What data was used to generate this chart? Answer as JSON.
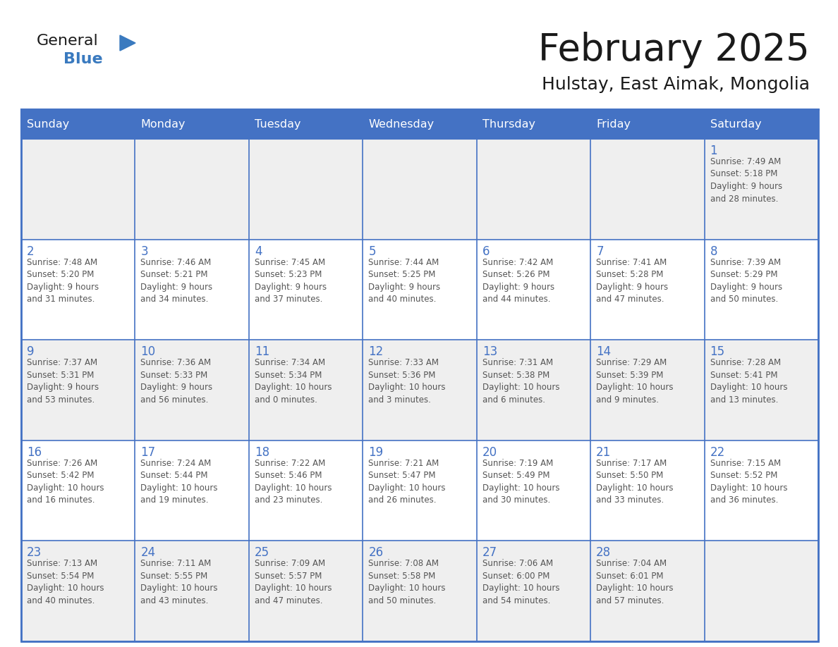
{
  "title": "February 2025",
  "subtitle": "Hulstay, East Aimak, Mongolia",
  "days_of_week": [
    "Sunday",
    "Monday",
    "Tuesday",
    "Wednesday",
    "Thursday",
    "Friday",
    "Saturday"
  ],
  "header_bg": "#4472C4",
  "header_text": "#FFFFFF",
  "cell_bg_light": "#EFEFEF",
  "cell_bg_white": "#FFFFFF",
  "cell_border": "#4472C4",
  "day_number_color": "#4472C4",
  "text_color": "#555555",
  "title_color": "#1a1a1a",
  "logo_general_color": "#1a1a1a",
  "logo_blue_color": "#3a7abf",
  "weeks": [
    [
      {
        "day": null,
        "info": null
      },
      {
        "day": null,
        "info": null
      },
      {
        "day": null,
        "info": null
      },
      {
        "day": null,
        "info": null
      },
      {
        "day": null,
        "info": null
      },
      {
        "day": null,
        "info": null
      },
      {
        "day": 1,
        "info": "Sunrise: 7:49 AM\nSunset: 5:18 PM\nDaylight: 9 hours\nand 28 minutes."
      }
    ],
    [
      {
        "day": 2,
        "info": "Sunrise: 7:48 AM\nSunset: 5:20 PM\nDaylight: 9 hours\nand 31 minutes."
      },
      {
        "day": 3,
        "info": "Sunrise: 7:46 AM\nSunset: 5:21 PM\nDaylight: 9 hours\nand 34 minutes."
      },
      {
        "day": 4,
        "info": "Sunrise: 7:45 AM\nSunset: 5:23 PM\nDaylight: 9 hours\nand 37 minutes."
      },
      {
        "day": 5,
        "info": "Sunrise: 7:44 AM\nSunset: 5:25 PM\nDaylight: 9 hours\nand 40 minutes."
      },
      {
        "day": 6,
        "info": "Sunrise: 7:42 AM\nSunset: 5:26 PM\nDaylight: 9 hours\nand 44 minutes."
      },
      {
        "day": 7,
        "info": "Sunrise: 7:41 AM\nSunset: 5:28 PM\nDaylight: 9 hours\nand 47 minutes."
      },
      {
        "day": 8,
        "info": "Sunrise: 7:39 AM\nSunset: 5:29 PM\nDaylight: 9 hours\nand 50 minutes."
      }
    ],
    [
      {
        "day": 9,
        "info": "Sunrise: 7:37 AM\nSunset: 5:31 PM\nDaylight: 9 hours\nand 53 minutes."
      },
      {
        "day": 10,
        "info": "Sunrise: 7:36 AM\nSunset: 5:33 PM\nDaylight: 9 hours\nand 56 minutes."
      },
      {
        "day": 11,
        "info": "Sunrise: 7:34 AM\nSunset: 5:34 PM\nDaylight: 10 hours\nand 0 minutes."
      },
      {
        "day": 12,
        "info": "Sunrise: 7:33 AM\nSunset: 5:36 PM\nDaylight: 10 hours\nand 3 minutes."
      },
      {
        "day": 13,
        "info": "Sunrise: 7:31 AM\nSunset: 5:38 PM\nDaylight: 10 hours\nand 6 minutes."
      },
      {
        "day": 14,
        "info": "Sunrise: 7:29 AM\nSunset: 5:39 PM\nDaylight: 10 hours\nand 9 minutes."
      },
      {
        "day": 15,
        "info": "Sunrise: 7:28 AM\nSunset: 5:41 PM\nDaylight: 10 hours\nand 13 minutes."
      }
    ],
    [
      {
        "day": 16,
        "info": "Sunrise: 7:26 AM\nSunset: 5:42 PM\nDaylight: 10 hours\nand 16 minutes."
      },
      {
        "day": 17,
        "info": "Sunrise: 7:24 AM\nSunset: 5:44 PM\nDaylight: 10 hours\nand 19 minutes."
      },
      {
        "day": 18,
        "info": "Sunrise: 7:22 AM\nSunset: 5:46 PM\nDaylight: 10 hours\nand 23 minutes."
      },
      {
        "day": 19,
        "info": "Sunrise: 7:21 AM\nSunset: 5:47 PM\nDaylight: 10 hours\nand 26 minutes."
      },
      {
        "day": 20,
        "info": "Sunrise: 7:19 AM\nSunset: 5:49 PM\nDaylight: 10 hours\nand 30 minutes."
      },
      {
        "day": 21,
        "info": "Sunrise: 7:17 AM\nSunset: 5:50 PM\nDaylight: 10 hours\nand 33 minutes."
      },
      {
        "day": 22,
        "info": "Sunrise: 7:15 AM\nSunset: 5:52 PM\nDaylight: 10 hours\nand 36 minutes."
      }
    ],
    [
      {
        "day": 23,
        "info": "Sunrise: 7:13 AM\nSunset: 5:54 PM\nDaylight: 10 hours\nand 40 minutes."
      },
      {
        "day": 24,
        "info": "Sunrise: 7:11 AM\nSunset: 5:55 PM\nDaylight: 10 hours\nand 43 minutes."
      },
      {
        "day": 25,
        "info": "Sunrise: 7:09 AM\nSunset: 5:57 PM\nDaylight: 10 hours\nand 47 minutes."
      },
      {
        "day": 26,
        "info": "Sunrise: 7:08 AM\nSunset: 5:58 PM\nDaylight: 10 hours\nand 50 minutes."
      },
      {
        "day": 27,
        "info": "Sunrise: 7:06 AM\nSunset: 6:00 PM\nDaylight: 10 hours\nand 54 minutes."
      },
      {
        "day": 28,
        "info": "Sunrise: 7:04 AM\nSunset: 6:01 PM\nDaylight: 10 hours\nand 57 minutes."
      },
      {
        "day": null,
        "info": null
      }
    ]
  ]
}
